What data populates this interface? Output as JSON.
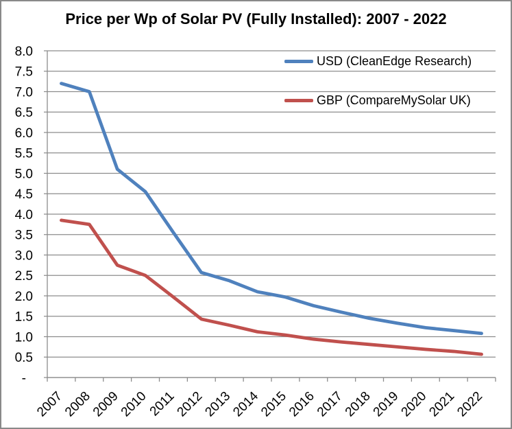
{
  "chart_data": {
    "type": "line",
    "title": "Price per Wp of Solar PV (Fully Installed): 2007 - 2022",
    "categories": [
      "2007",
      "2008",
      "2009",
      "2010",
      "2011",
      "2012",
      "2013",
      "2014",
      "2015",
      "2016",
      "2017",
      "2018",
      "2019",
      "2020",
      "2021",
      "2022"
    ],
    "series": [
      {
        "name": "USD (CleanEdge Research)",
        "color": "#4F81BD",
        "values": [
          7.2,
          7.0,
          5.1,
          4.55,
          3.55,
          2.57,
          2.37,
          2.1,
          1.97,
          1.76,
          1.6,
          1.45,
          1.33,
          1.22,
          1.15,
          1.08
        ]
      },
      {
        "name": "GBP (CompareMySolar UK)",
        "color": "#C0504D",
        "values": [
          3.85,
          3.75,
          2.75,
          2.5,
          1.97,
          1.43,
          1.28,
          1.12,
          1.04,
          0.94,
          0.87,
          0.81,
          0.75,
          0.69,
          0.64,
          0.57
        ]
      }
    ],
    "ylim": [
      0,
      8
    ],
    "ytick_labels": [
      "-",
      "0.5",
      "1.0",
      "1.5",
      "2.0",
      "2.5",
      "3.0",
      "3.5",
      "4.0",
      "4.5",
      "5.0",
      "5.5",
      "6.0",
      "6.5",
      "7.0",
      "7.5",
      "8.0"
    ],
    "grid": "horizontal",
    "legend_position": "inside-top-right",
    "colors": {
      "grid": "#8c8c8c",
      "axis": "#8c8c8c",
      "text": "#000000"
    }
  }
}
